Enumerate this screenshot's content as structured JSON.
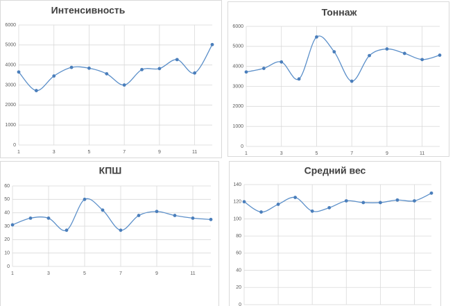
{
  "chart_data": [
    {
      "type": "line",
      "title": "Интенсивность",
      "x": [
        1,
        2,
        3,
        4,
        5,
        6,
        7,
        8,
        9,
        10,
        11,
        12
      ],
      "series": [
        {
          "color": "#4a7ebb",
          "values": [
            3650,
            2720,
            3450,
            3880,
            3840,
            3560,
            3000,
            3770,
            3820,
            4270,
            3600,
            5020
          ]
        }
      ],
      "xlim": [
        1,
        12
      ],
      "xticks": [
        1,
        3,
        5,
        7,
        9,
        11
      ],
      "ylim": [
        0,
        6000
      ],
      "yticks": [
        0,
        1000,
        2000,
        3000,
        4000,
        5000,
        6000
      ],
      "grid": true,
      "smooth": true
    },
    {
      "type": "line",
      "title": "Тоннаж",
      "x": [
        1,
        2,
        3,
        4,
        5,
        6,
        7,
        8,
        9,
        10,
        11,
        12
      ],
      "series": [
        {
          "color": "#4a7ebb",
          "values": [
            3720,
            3900,
            4220,
            3370,
            5470,
            4730,
            3260,
            4540,
            4870,
            4650,
            4340,
            4560
          ]
        }
      ],
      "xlim": [
        1,
        12
      ],
      "xticks": [
        1,
        3,
        5,
        7,
        9,
        11
      ],
      "ylim": [
        0,
        6000
      ],
      "yticks": [
        0,
        1000,
        2000,
        3000,
        4000,
        5000,
        6000
      ],
      "grid": true,
      "smooth": true
    },
    {
      "type": "line",
      "title": "КПШ",
      "x": [
        1,
        2,
        3,
        4,
        5,
        6,
        7,
        8,
        9,
        10,
        11,
        12
      ],
      "series": [
        {
          "color": "#4a7ebb",
          "values": [
            31,
            36,
            36,
            27,
            50,
            42,
            27,
            38,
            41,
            38,
            36,
            35
          ]
        }
      ],
      "xlim": [
        1,
        12
      ],
      "xticks": [
        1,
        3,
        5,
        7,
        9,
        11
      ],
      "ylim": [
        0,
        60
      ],
      "yticks": [
        0,
        10,
        20,
        30,
        40,
        50,
        60
      ],
      "grid": true,
      "smooth": true
    },
    {
      "type": "line",
      "title": "Средний вес",
      "series": [
        {
          "color": "#4a7ebb",
          "values": [
            120,
            108,
            117,
            125,
            109,
            113,
            121,
            119,
            119,
            122,
            121,
            130
          ]
        }
      ],
      "ylim": [
        0,
        140
      ],
      "yticks": [
        0,
        20,
        40,
        60,
        80,
        100,
        120,
        140
      ],
      "grid": true,
      "smooth": true
    }
  ]
}
